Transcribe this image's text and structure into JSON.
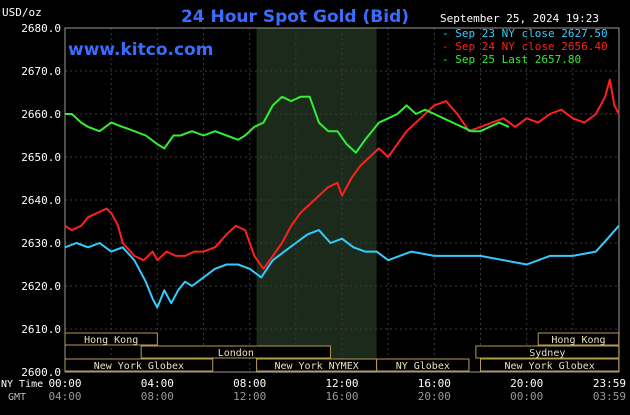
{
  "header": {
    "unit_label": "USD/oz",
    "title": "24 Hour Spot Gold (Bid)",
    "datetime": "September 25, 2024 19:23",
    "website": "www.kitco.com"
  },
  "legend": [
    {
      "label": "Sep 23 NY close 2627.50",
      "color": "#33ccff"
    },
    {
      "label": "Sep 24 NY close 2656.40",
      "color": "#ff2020"
    },
    {
      "label": "Sep 25 Last 2657.80",
      "color": "#33ee33"
    }
  ],
  "time_axis": {
    "ny_time_label": "NY Time",
    "gmt_label": "GMT",
    "ny_ticks": [
      "00:00",
      "04:00",
      "08:00",
      "12:00",
      "16:00",
      "20:00",
      "23:59"
    ],
    "gmt_ticks": [
      "04:00",
      "08:00",
      "12:00",
      "16:00",
      "20:00",
      "00:00",
      "03:59"
    ]
  },
  "sessions": {
    "row1": [
      {
        "label": "Hong Kong",
        "start": 0,
        "end": 4
      },
      {
        "label": "Hong Kong",
        "start": 20.5,
        "end": 23.99
      }
    ],
    "row2": [
      {
        "label": "London",
        "start": 3.3,
        "end": 11.5
      },
      {
        "label": "Sydney",
        "start": 17.8,
        "end": 23.99
      }
    ],
    "row3": [
      {
        "label": "New York Globex",
        "start": 0,
        "end": 6.4
      },
      {
        "label": "New York NYMEX",
        "start": 8.3,
        "end": 13.5
      },
      {
        "label": "NY Globex",
        "start": 13.5,
        "end": 17.5
      },
      {
        "label": "New York Globex",
        "start": 18,
        "end": 23.99
      }
    ]
  },
  "chart_data": {
    "type": "line",
    "title": "24 Hour Spot Gold (Bid)",
    "ylabel": "USD/oz",
    "xlim": [
      0,
      24
    ],
    "ylim": [
      2600,
      2680
    ],
    "yticks": [
      2600,
      2610,
      2620,
      2630,
      2640,
      2650,
      2660,
      2670,
      2680
    ],
    "highlight_range": [
      8.3,
      13.5
    ],
    "grid": true,
    "legend_position": "top-right",
    "series": [
      {
        "name": "Sep 23",
        "color": "#33ccff",
        "x": [
          0,
          0.5,
          1,
          1.5,
          2,
          2.5,
          3,
          3.5,
          3.8,
          4,
          4.3,
          4.6,
          4.9,
          5.2,
          5.5,
          6,
          6.5,
          7,
          7.5,
          8,
          8.5,
          9,
          9.5,
          10,
          10.5,
          11,
          11.5,
          12,
          12.5,
          13,
          13.5,
          14,
          15,
          16,
          17,
          18,
          19,
          20,
          21,
          22,
          23,
          23.5,
          23.99
        ],
        "values": [
          2629,
          2630,
          2629,
          2630,
          2628,
          2629,
          2626,
          2621,
          2617,
          2615,
          2619,
          2616,
          2619,
          2621,
          2620,
          2622,
          2624,
          2625,
          2625,
          2624,
          2622,
          2626,
          2628,
          2630,
          2632,
          2633,
          2630,
          2631,
          2629,
          2628,
          2628,
          2626,
          2628,
          2627,
          2627,
          2627,
          2626,
          2625,
          2627,
          2627,
          2628,
          2631,
          2634
        ]
      },
      {
        "name": "Sep 24",
        "color": "#ff2020",
        "x": [
          0,
          0.3,
          0.7,
          1,
          1.4,
          1.8,
          2,
          2.3,
          2.5,
          3,
          3.4,
          3.8,
          4,
          4.4,
          4.8,
          5.2,
          5.6,
          6,
          6.5,
          7,
          7.4,
          7.8,
          8.2,
          8.6,
          9,
          9.4,
          9.8,
          10.2,
          10.6,
          11,
          11.4,
          11.8,
          12,
          12.4,
          12.8,
          13.2,
          13.6,
          14,
          14.4,
          14.8,
          15.2,
          15.6,
          16,
          16.5,
          17,
          17.5,
          18,
          18.5,
          19,
          19.5,
          20,
          20.5,
          21,
          21.5,
          22,
          22.5,
          23,
          23.4,
          23.6,
          23.8,
          23.99
        ],
        "values": [
          2634,
          2633,
          2634,
          2636,
          2637,
          2638,
          2637,
          2634,
          2630,
          2627,
          2626,
          2628,
          2626,
          2628,
          2627,
          2627,
          2628,
          2628,
          2629,
          2632,
          2634,
          2633,
          2627,
          2624,
          2627,
          2630,
          2634,
          2637,
          2639,
          2641,
          2643,
          2644,
          2641,
          2645,
          2648,
          2650,
          2652,
          2650,
          2653,
          2656,
          2658,
          2660,
          2662,
          2663,
          2660,
          2656,
          2657,
          2658,
          2659,
          2657,
          2659,
          2658,
          2660,
          2661,
          2659,
          2658,
          2660,
          2664,
          2668,
          2662,
          2660
        ]
      },
      {
        "name": "Sep 25",
        "color": "#33ee33",
        "x": [
          0,
          0.3,
          0.7,
          1,
          1.5,
          2,
          2.5,
          3,
          3.5,
          4,
          4.3,
          4.7,
          5,
          5.5,
          6,
          6.5,
          7,
          7.5,
          7.8,
          8.2,
          8.6,
          9,
          9.4,
          9.8,
          10.2,
          10.6,
          11,
          11.4,
          11.8,
          12.2,
          12.6,
          13,
          13.3,
          13.6,
          14,
          14.4,
          14.8,
          15.2,
          15.6,
          16,
          16.4,
          16.8,
          17.2,
          17.6,
          18,
          18.4,
          18.8,
          19.23
        ],
        "values": [
          2660,
          2660,
          2658,
          2657,
          2656,
          2658,
          2657,
          2656,
          2655,
          2653,
          2652,
          2655,
          2655,
          2656,
          2655,
          2656,
          2655,
          2654,
          2655,
          2657,
          2658,
          2662,
          2664,
          2663,
          2664,
          2664,
          2658,
          2656,
          2656,
          2653,
          2651,
          2654,
          2656,
          2658,
          2659,
          2660,
          2662,
          2660,
          2661,
          2660,
          2659,
          2658,
          2657,
          2656,
          2656,
          2657,
          2658,
          2657
        ]
      }
    ]
  }
}
